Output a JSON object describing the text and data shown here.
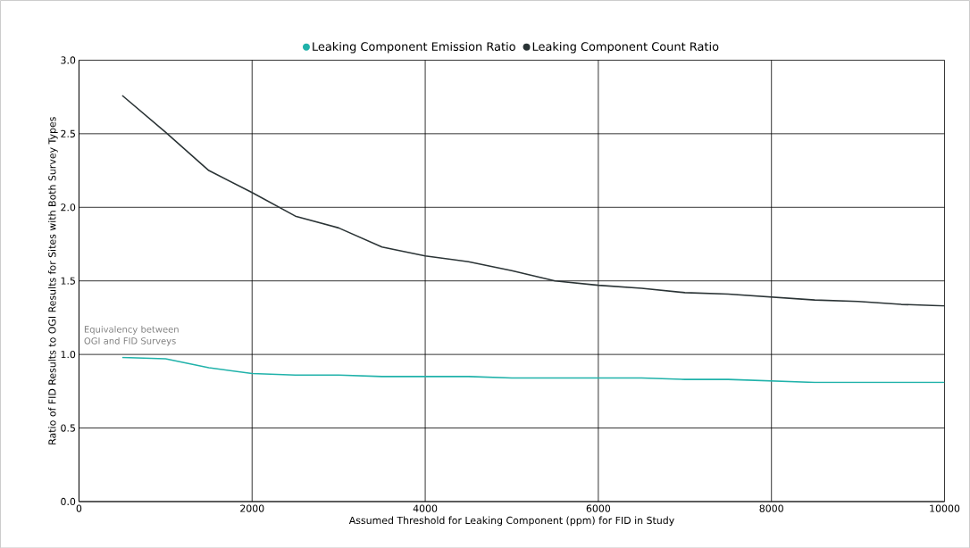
{
  "chart_data": {
    "type": "line",
    "xlabel": "Assumed Threshold for Leaking Component (ppm) for FID in Study",
    "ylabel": "Ratio of FID Results to OGI Results for Sites with Both Survey Types",
    "x": [
      500,
      1000,
      1500,
      2000,
      2500,
      3000,
      3500,
      4000,
      4500,
      5000,
      5500,
      6000,
      6500,
      7000,
      7500,
      8000,
      8500,
      9000,
      9500,
      10000
    ],
    "series": [
      {
        "name": "Leaking Component Emission Ratio",
        "color": "#20b2aa",
        "values": [
          0.98,
          0.97,
          0.91,
          0.87,
          0.86,
          0.86,
          0.85,
          0.85,
          0.85,
          0.84,
          0.84,
          0.84,
          0.84,
          0.83,
          0.83,
          0.82,
          0.81,
          0.81,
          0.81,
          0.81
        ]
      },
      {
        "name": "Leaking Component Count Ratio",
        "color": "#2b3436",
        "values": [
          2.76,
          2.51,
          2.25,
          2.1,
          1.94,
          1.86,
          1.73,
          1.67,
          1.63,
          1.57,
          1.5,
          1.47,
          1.45,
          1.42,
          1.41,
          1.39,
          1.37,
          1.36,
          1.34,
          1.33
        ]
      }
    ],
    "xlim": [
      0,
      10000
    ],
    "xticks": [
      0,
      2000,
      4000,
      6000,
      8000,
      10000
    ],
    "ylim": [
      0,
      3
    ],
    "yticks": [
      {
        "value": 0,
        "label": "0.0"
      },
      0.5,
      {
        "value": 1,
        "label": "1.0"
      },
      1.5,
      {
        "value": 2,
        "label": "2.0"
      },
      2.5,
      {
        "value": 3,
        "label": "3.0"
      }
    ],
    "annotations": [
      "Equivalency between OGI and FID Surveys"
    ],
    "grid": true,
    "legend": "top",
    "marker": "none",
    "line_style": "solid"
  }
}
